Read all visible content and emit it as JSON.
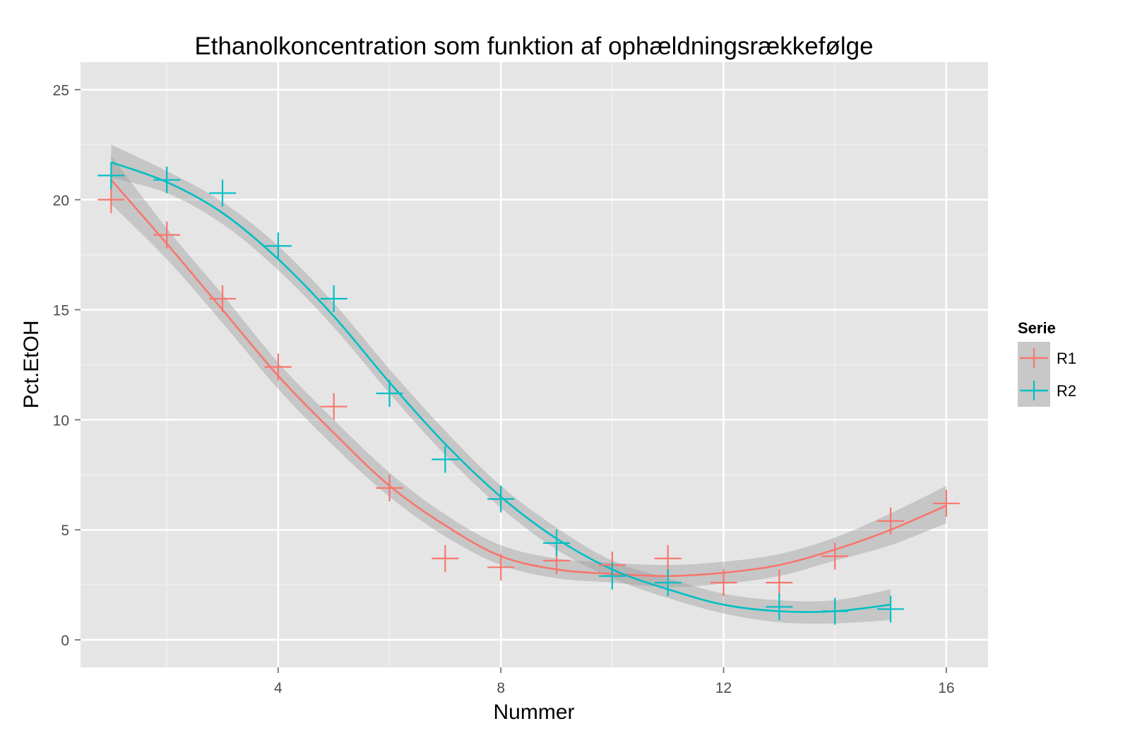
{
  "chart_data": {
    "type": "scatter",
    "title": "Ethanolkoncentration som funktion af ophældningsrækkefølge",
    "xlabel": "Nummer",
    "ylabel": "Pct.EtOH",
    "xlim": [
      0.45,
      16.75
    ],
    "ylim": [
      -1.25,
      26.25
    ],
    "x_ticks": [
      4,
      8,
      12,
      16
    ],
    "y_ticks": [
      0,
      5,
      10,
      15,
      20,
      25
    ],
    "grid": true,
    "legend": {
      "title": "Serie",
      "position": "right"
    },
    "series": [
      {
        "name": "R1",
        "color": "#F8766D",
        "points": [
          [
            1,
            20.0
          ],
          [
            2,
            18.4
          ],
          [
            3,
            15.5
          ],
          [
            4,
            12.4
          ],
          [
            5,
            10.6
          ],
          [
            6,
            6.9
          ],
          [
            7,
            3.7
          ],
          [
            8,
            3.3
          ],
          [
            9,
            3.6
          ],
          [
            10,
            3.4
          ],
          [
            11,
            3.7
          ],
          [
            12,
            2.6
          ],
          [
            13,
            2.6
          ],
          [
            14,
            3.8
          ],
          [
            15,
            5.4
          ],
          [
            16,
            6.2
          ]
        ],
        "smooth": [
          [
            1,
            20.9
          ],
          [
            2,
            18.0
          ],
          [
            3,
            15.0
          ],
          [
            4,
            12.0
          ],
          [
            5,
            9.4
          ],
          [
            6,
            7.0
          ],
          [
            7,
            5.2
          ],
          [
            8,
            3.8
          ],
          [
            9,
            3.2
          ],
          [
            10,
            3.0
          ],
          [
            11,
            2.9
          ],
          [
            12,
            3.05
          ],
          [
            13,
            3.4
          ],
          [
            14,
            4.1
          ],
          [
            15,
            5.0
          ],
          [
            16,
            6.1
          ]
        ],
        "band": [
          [
            1,
            22.0,
            19.8
          ],
          [
            2,
            18.7,
            17.3
          ],
          [
            3,
            15.7,
            14.4
          ],
          [
            4,
            12.6,
            11.4
          ],
          [
            5,
            10.0,
            8.8
          ],
          [
            6,
            7.6,
            6.5
          ],
          [
            7,
            5.7,
            4.7
          ],
          [
            8,
            4.3,
            3.4
          ],
          [
            9,
            3.7,
            2.8
          ],
          [
            10,
            3.5,
            2.6
          ],
          [
            11,
            3.4,
            2.4
          ],
          [
            12,
            3.55,
            2.55
          ],
          [
            13,
            3.9,
            2.9
          ],
          [
            14,
            4.65,
            3.6
          ],
          [
            15,
            5.75,
            4.3
          ],
          [
            16,
            7.0,
            5.3
          ]
        ]
      },
      {
        "name": "R2",
        "color": "#00BFC4",
        "points": [
          [
            1,
            21.1
          ],
          [
            2,
            20.9
          ],
          [
            3,
            20.3
          ],
          [
            4,
            17.9
          ],
          [
            5,
            15.5
          ],
          [
            6,
            11.2
          ],
          [
            7,
            8.2
          ],
          [
            8,
            6.4
          ],
          [
            9,
            4.4
          ],
          [
            10,
            2.9
          ],
          [
            11,
            2.6
          ],
          [
            13,
            1.5
          ],
          [
            14,
            1.3
          ],
          [
            15,
            1.4
          ]
        ],
        "smooth": [
          [
            1,
            21.7
          ],
          [
            2,
            20.8
          ],
          [
            3,
            19.4
          ],
          [
            4,
            17.3
          ],
          [
            5,
            14.7
          ],
          [
            6,
            11.7
          ],
          [
            7,
            8.9
          ],
          [
            8,
            6.5
          ],
          [
            9,
            4.6
          ],
          [
            10,
            3.2
          ],
          [
            11,
            2.3
          ],
          [
            12,
            1.6
          ],
          [
            13,
            1.3
          ],
          [
            14,
            1.3
          ],
          [
            15,
            1.6
          ]
        ],
        "band": [
          [
            1,
            22.5,
            21.0
          ],
          [
            2,
            21.3,
            20.3
          ],
          [
            3,
            19.9,
            18.9
          ],
          [
            4,
            17.9,
            16.8
          ],
          [
            5,
            15.3,
            14.2
          ],
          [
            6,
            12.3,
            11.2
          ],
          [
            7,
            9.5,
            8.4
          ],
          [
            8,
            7.0,
            6.0
          ],
          [
            9,
            5.1,
            4.1
          ],
          [
            10,
            3.6,
            2.8
          ],
          [
            11,
            2.8,
            1.9
          ],
          [
            12,
            2.1,
            1.2
          ],
          [
            13,
            1.8,
            0.8
          ],
          [
            14,
            1.8,
            0.75
          ],
          [
            15,
            2.3,
            0.9
          ]
        ]
      }
    ]
  }
}
